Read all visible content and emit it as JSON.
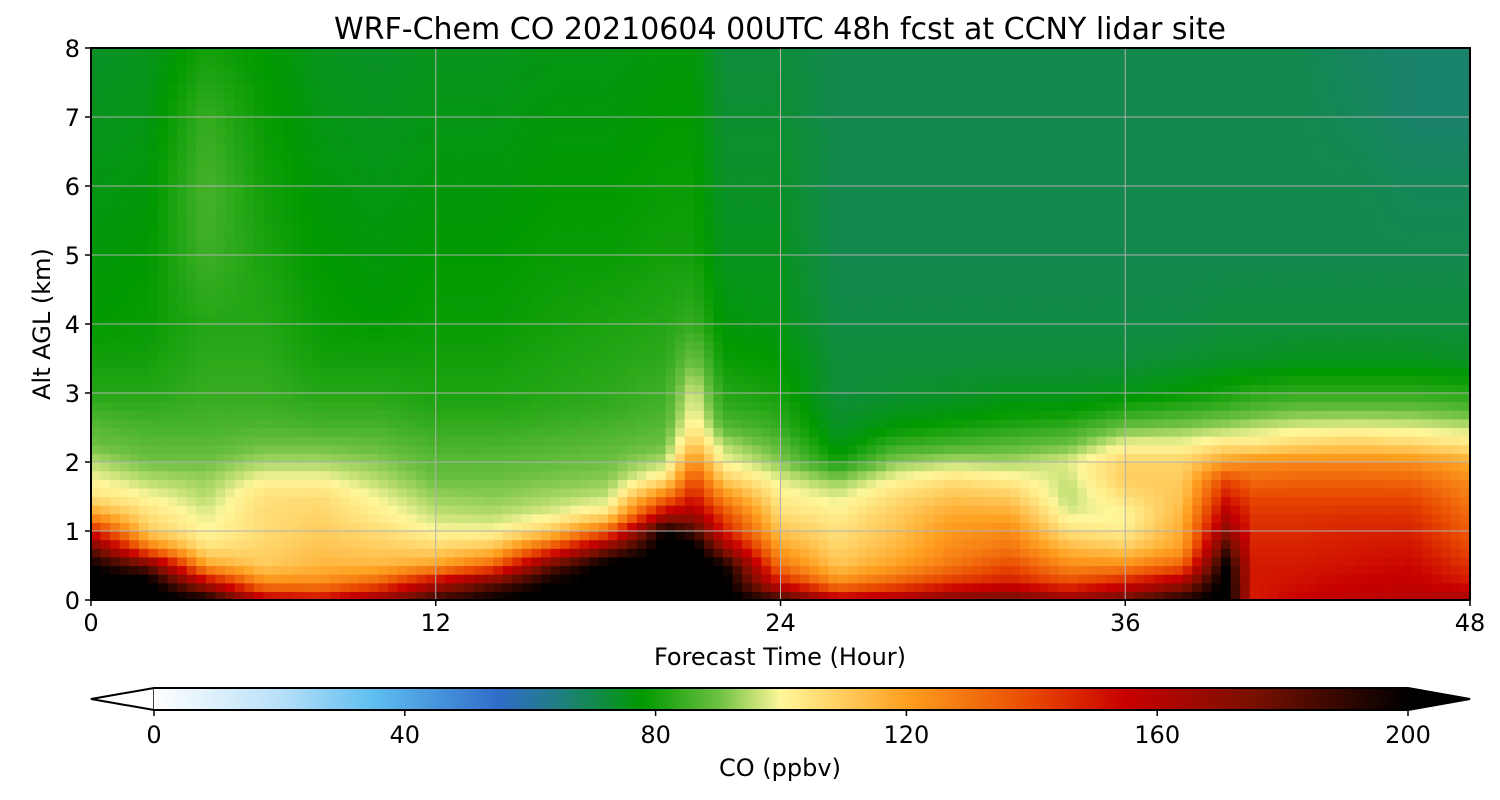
{
  "chart_data": {
    "type": "heatmap",
    "title": "WRF-Chem CO  20210604 00UTC 48h fcst at CCNY lidar site",
    "xlabel": "Forecast Time (Hour)",
    "ylabel": "Alt AGL (km)",
    "xlim": [
      0,
      48
    ],
    "ylim": [
      0,
      8
    ],
    "x_ticks": [
      "0",
      "12",
      "24",
      "36",
      "48"
    ],
    "y_ticks": [
      "0",
      "1",
      "2",
      "3",
      "4",
      "5",
      "6",
      "7",
      "8"
    ],
    "grid": true,
    "colorbar": {
      "label": "CO  (ppbv)",
      "range": [
        0,
        200
      ],
      "ticks": [
        "0",
        "40",
        "80",
        "120",
        "160",
        "200"
      ],
      "extend": "both",
      "colors": {
        "0": "#ffffff",
        "20": "#b8e0f8",
        "35": "#5fbef0",
        "55": "#2f6cc8",
        "65": "#1f7f7f",
        "78": "#009900",
        "90": "#6cc040",
        "100": "#fff79a",
        "120": "#ffa020",
        "140": "#e84800",
        "155": "#c80000",
        "175": "#7a1000",
        "200": "#000000"
      }
    },
    "x": [
      0,
      2,
      4,
      6,
      8,
      10,
      12,
      14,
      16,
      18,
      20,
      21,
      22,
      24,
      26,
      28,
      30,
      32,
      34,
      36,
      38,
      39.5,
      40.5,
      42,
      44,
      46,
      48
    ],
    "y": [
      0,
      0.25,
      0.5,
      0.75,
      1,
      1.25,
      1.5,
      1.75,
      2,
      2.25,
      2.5,
      2.75,
      3,
      3.5,
      4,
      5,
      6,
      7,
      8
    ],
    "series": [
      {
        "values": [
          [
            205,
            205,
            200,
            180,
            150,
            120,
            105,
            100,
            95,
            90,
            88,
            85,
            82,
            80,
            78,
            77,
            76,
            75,
            74
          ],
          [
            205,
            205,
            180,
            130,
            110,
            105,
            100,
            95,
            90,
            88,
            86,
            84,
            82,
            80,
            79,
            78,
            77,
            76,
            75
          ],
          [
            200,
            160,
            120,
            105,
            100,
            98,
            95,
            93,
            90,
            88,
            86,
            85,
            84,
            83,
            82,
            85,
            86,
            84,
            80
          ],
          [
            160,
            125,
            110,
            108,
            106,
            106,
            105,
            100,
            94,
            90,
            87,
            85,
            84,
            83,
            82,
            81,
            80,
            79,
            78
          ],
          [
            155,
            125,
            115,
            112,
            110,
            108,
            106,
            100,
            94,
            90,
            86,
            84,
            82,
            80,
            79,
            78,
            77,
            76,
            75
          ],
          [
            170,
            135,
            115,
            110,
            106,
            102,
            99,
            95,
            92,
            89,
            86,
            84,
            82,
            80,
            78,
            77,
            76,
            75,
            74
          ],
          [
            190,
            160,
            120,
            108,
            100,
            96,
            93,
            90,
            88,
            86,
            84,
            82,
            81,
            80,
            79,
            78,
            77,
            76,
            75
          ],
          [
            200,
            180,
            135,
            112,
            100,
            95,
            92,
            90,
            88,
            86,
            84,
            82,
            81,
            80,
            79,
            78,
            77,
            76,
            75
          ],
          [
            205,
            200,
            180,
            140,
            110,
            98,
            94,
            91,
            89,
            87,
            85,
            83,
            82,
            81,
            80,
            79,
            78,
            77,
            76
          ],
          [
            205,
            205,
            205,
            175,
            135,
            105,
            96,
            92,
            90,
            88,
            86,
            84,
            83,
            82,
            81,
            79,
            78,
            77,
            76
          ],
          [
            205,
            205,
            205,
            205,
            200,
            160,
            130,
            105,
            95,
            90,
            88,
            86,
            85,
            83,
            82,
            80,
            79,
            78,
            77
          ],
          [
            205,
            205,
            205,
            205,
            185,
            165,
            150,
            140,
            125,
            112,
            104,
            100,
            98,
            90,
            84,
            80,
            79,
            78,
            77
          ],
          [
            205,
            205,
            200,
            170,
            150,
            140,
            125,
            110,
            100,
            95,
            88,
            84,
            82,
            79,
            77,
            75,
            74,
            73,
            72
          ],
          [
            190,
            150,
            130,
            120,
            112,
            106,
            102,
            98,
            92,
            88,
            84,
            82,
            80,
            78,
            76,
            75,
            74,
            73,
            72
          ],
          [
            160,
            125,
            112,
            108,
            105,
            102,
            98,
            92,
            80,
            76,
            74,
            73,
            72,
            72,
            71,
            70,
            70,
            70,
            70
          ],
          [
            165,
            135,
            120,
            115,
            112,
            110,
            106,
            100,
            92,
            84,
            78,
            75,
            73,
            72,
            71,
            70,
            70,
            70,
            70
          ],
          [
            175,
            145,
            130,
            125,
            122,
            118,
            112,
            105,
            95,
            86,
            80,
            76,
            74,
            72,
            71,
            70,
            70,
            70,
            70
          ],
          [
            180,
            150,
            140,
            130,
            125,
            118,
            110,
            102,
            94,
            88,
            82,
            78,
            75,
            72,
            71,
            70,
            70,
            70,
            70
          ],
          [
            170,
            140,
            125,
            115,
            105,
            98,
            95,
            96,
            98,
            90,
            84,
            78,
            75,
            72,
            71,
            70,
            70,
            70,
            70
          ],
          [
            180,
            150,
            125,
            110,
            102,
            100,
            105,
            110,
            108,
            100,
            90,
            82,
            76,
            72,
            71,
            70,
            70,
            70,
            70
          ],
          [
            195,
            165,
            135,
            120,
            118,
            115,
            112,
            110,
            108,
            100,
            92,
            84,
            78,
            73,
            71,
            70,
            70,
            70,
            70
          ],
          [
            205,
            205,
            200,
            185,
            170,
            160,
            150,
            140,
            120,
            105,
            94,
            86,
            80,
            74,
            72,
            70,
            70,
            70,
            70
          ],
          [
            150,
            150,
            150,
            148,
            146,
            144,
            140,
            132,
            125,
            104,
            96,
            88,
            82,
            74,
            72,
            70,
            70,
            70,
            70
          ],
          [
            155,
            152,
            150,
            148,
            146,
            144,
            140,
            134,
            125,
            108,
            98,
            90,
            83,
            75,
            72,
            70,
            70,
            70,
            70
          ],
          [
            158,
            155,
            152,
            150,
            148,
            145,
            140,
            134,
            125,
            110,
            99,
            90,
            83,
            75,
            72,
            70,
            70,
            69,
            68
          ],
          [
            160,
            157,
            154,
            151,
            148,
            145,
            140,
            133,
            124,
            108,
            98,
            90,
            83,
            75,
            72,
            70,
            69,
            67,
            67
          ],
          [
            165,
            150,
            145,
            140,
            136,
            132,
            128,
            124,
            118,
            104,
            96,
            88,
            82,
            74,
            72,
            70,
            69,
            67,
            67
          ]
        ]
      }
    ]
  }
}
